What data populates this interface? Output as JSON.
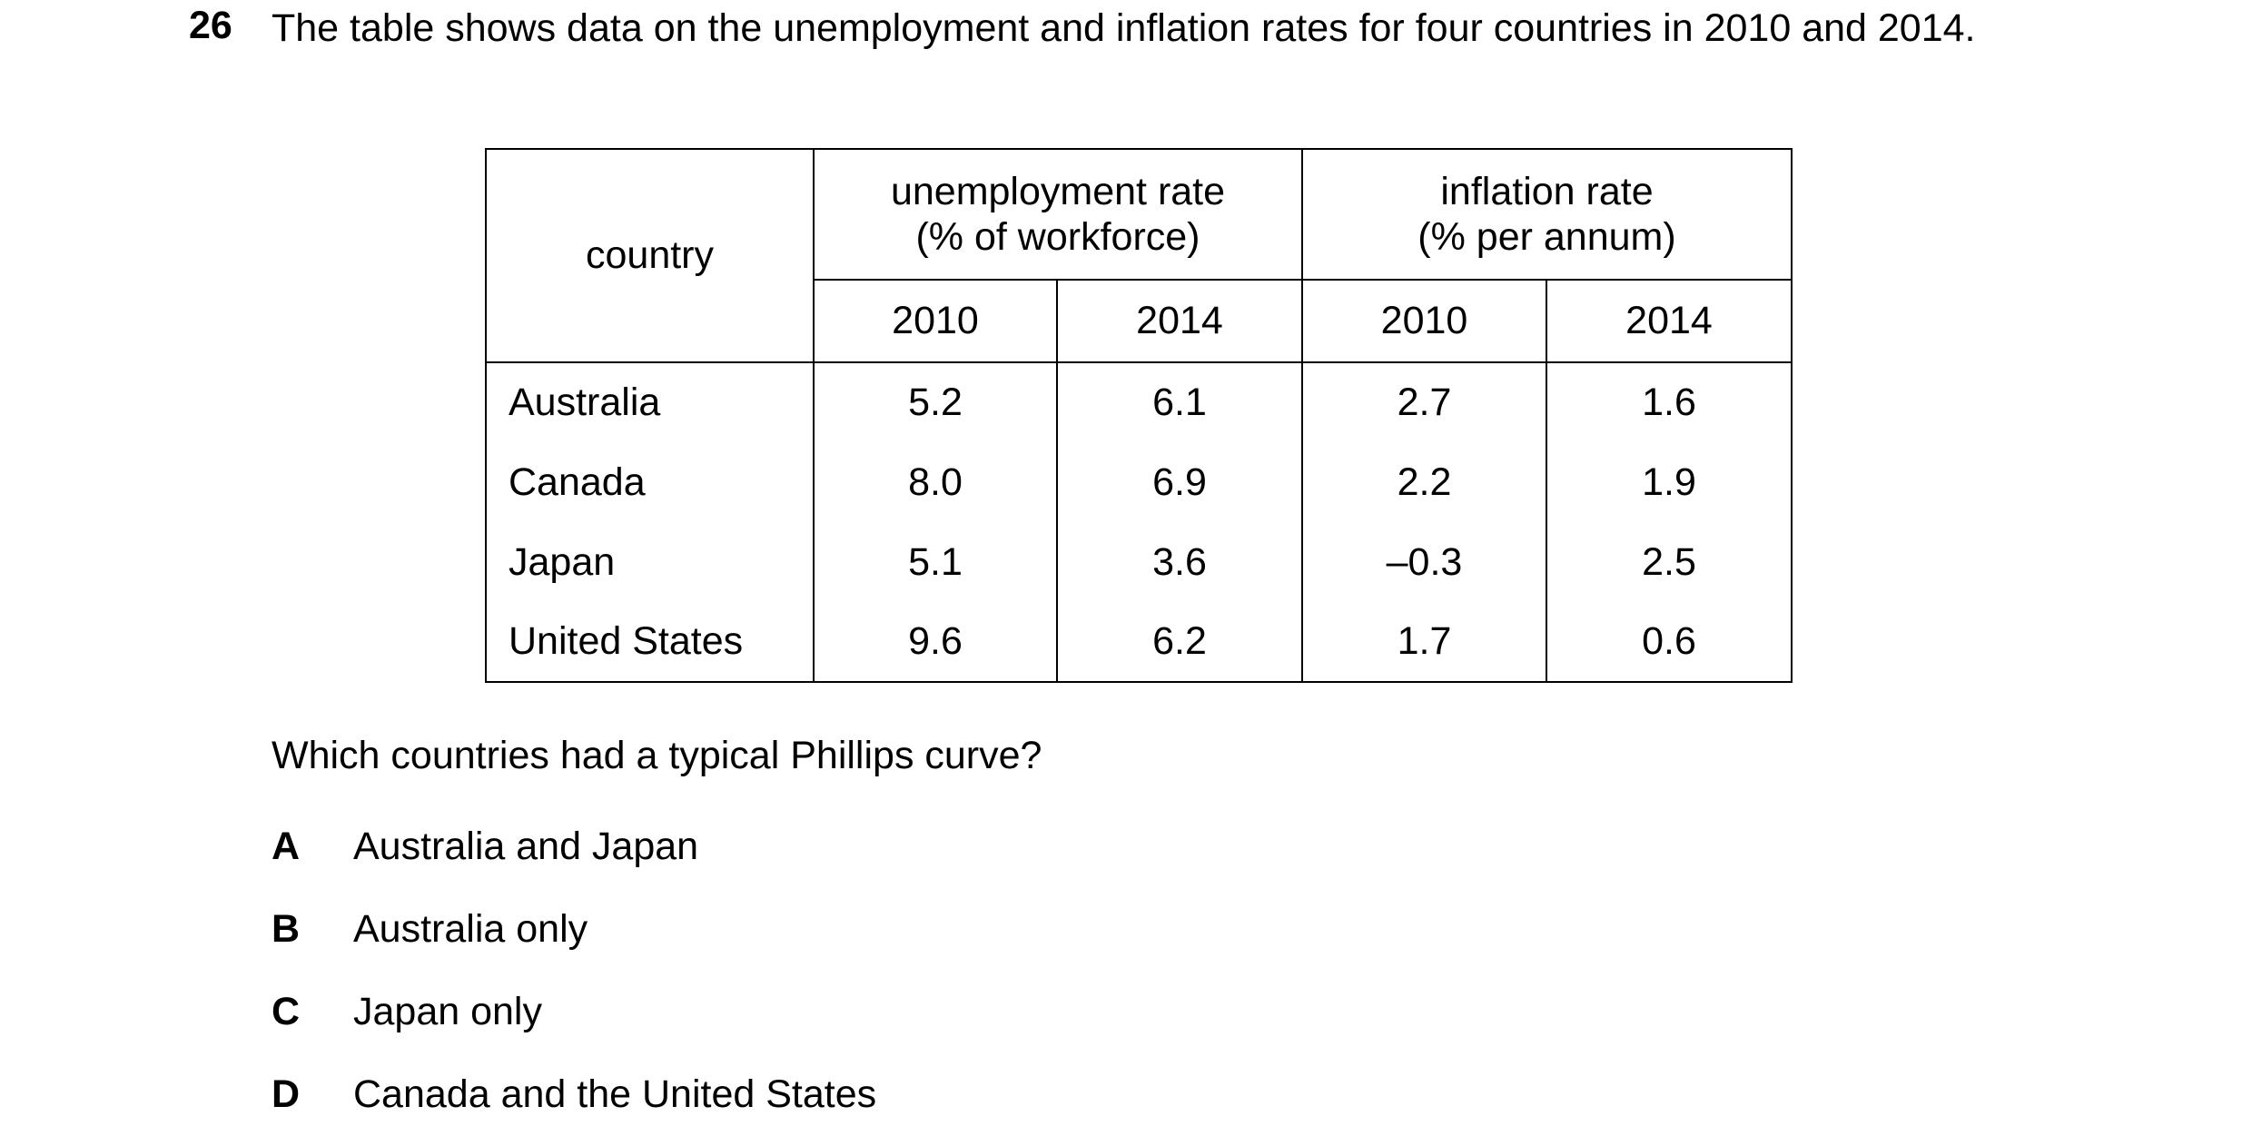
{
  "question": {
    "number": "26",
    "text": "The table shows data on the unemployment and inflation rates for four countries in 2010 and 2014."
  },
  "table": {
    "header": {
      "country": "country",
      "groups": [
        {
          "label": "unemployment rate",
          "unit": "(% of workforce)"
        },
        {
          "label": "inflation rate",
          "unit": "(% per annum)"
        }
      ],
      "years": [
        "2010",
        "2014",
        "2010",
        "2014"
      ]
    },
    "rows": [
      [
        "Australia",
        "5.2",
        "6.1",
        "2.7",
        "1.6"
      ],
      [
        "Canada",
        "8.0",
        "6.9",
        "2.2",
        "1.9"
      ],
      [
        "Japan",
        "5.1",
        "3.6",
        "–0.3",
        "2.5"
      ],
      [
        "United States",
        "9.6",
        "6.2",
        "1.7",
        "0.6"
      ]
    ]
  },
  "prompt": "Which countries had a typical Phillips curve?",
  "options": [
    {
      "letter": "A",
      "text": "Australia and Japan"
    },
    {
      "letter": "B",
      "text": "Australia only"
    },
    {
      "letter": "C",
      "text": "Japan only"
    },
    {
      "letter": "D",
      "text": "Canada and the United States"
    }
  ]
}
